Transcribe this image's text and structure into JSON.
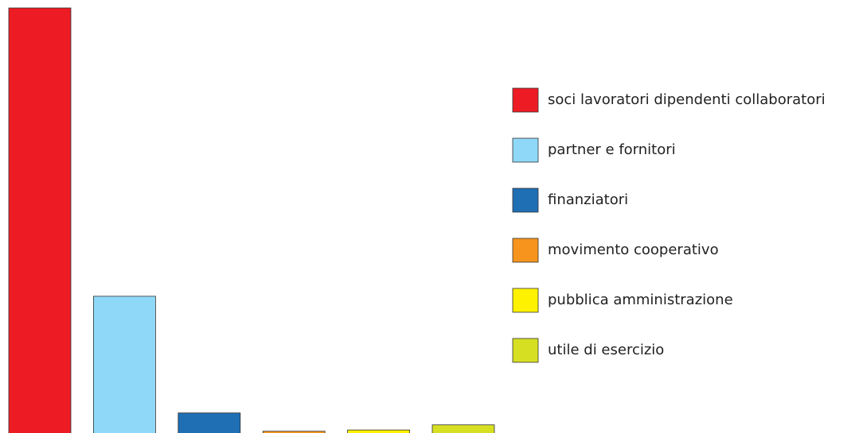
{
  "chart_data": {
    "type": "bar",
    "categories": [
      "soci lavoratori dipendenti collaboratori",
      "partner e fornitori",
      "finanziatori",
      "movimento cooperativo",
      "pubblica amministrazione",
      "utile di esercizio"
    ],
    "values": [
      100,
      32.3,
      4.9,
      0.6,
      0.9,
      2.1
    ],
    "colors": [
      "#ed1c24",
      "#8fd8f8",
      "#1f6fb5",
      "#f7941d",
      "#fff200",
      "#d7df23"
    ]
  }
}
